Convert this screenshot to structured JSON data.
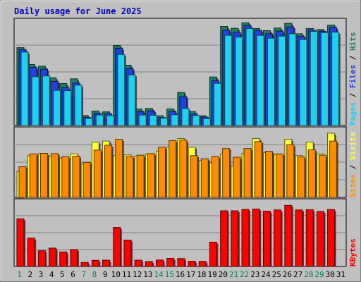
{
  "chart_data": [
    {
      "panel": "top",
      "type": "bar",
      "title": "Daily usage for June 2025",
      "y_max_label": "3928",
      "ylim": [
        0,
        3928
      ],
      "right_axis": [
        "Pages",
        "Files",
        "Hits"
      ],
      "colors": {
        "Hits": "#1f7f5f",
        "Files": "#2040e0",
        "Pages": "#20d0f0"
      },
      "categories": [
        "1",
        "2",
        "3",
        "4",
        "5",
        "6",
        "7",
        "8",
        "9",
        "10",
        "11",
        "12",
        "13",
        "14",
        "15",
        "16",
        "17",
        "18",
        "19",
        "20",
        "21",
        "22",
        "23",
        "24",
        "25",
        "26",
        "27",
        "28",
        "29",
        "30",
        "31"
      ],
      "series": [
        {
          "name": "Hits",
          "values": [
            2970,
            2330,
            2260,
            1820,
            1600,
            1780,
            380,
            550,
            520,
            3050,
            2300,
            630,
            650,
            370,
            630,
            1260,
            530,
            370,
            1850,
            3780,
            3710,
            3920,
            3700,
            3620,
            3720,
            3900,
            3500,
            3700,
            3660,
            3830,
            0
          ]
        },
        {
          "name": "Files",
          "values": [
            2900,
            2220,
            2150,
            1680,
            1450,
            1620,
            310,
            460,
            450,
            2950,
            2170,
            540,
            560,
            300,
            530,
            1100,
            440,
            320,
            1710,
            3640,
            3560,
            3820,
            3630,
            3500,
            3600,
            3760,
            3400,
            3640,
            3600,
            3740,
            0
          ]
        },
        {
          "name": "Pages",
          "values": [
            2800,
            1860,
            1890,
            1340,
            1330,
            1540,
            270,
            400,
            380,
            2710,
            1930,
            400,
            390,
            280,
            410,
            650,
            380,
            260,
            1610,
            3440,
            3370,
            3700,
            3440,
            3330,
            3410,
            3500,
            3280,
            3590,
            3540,
            3560,
            0
          ]
        }
      ]
    },
    {
      "panel": "middle",
      "type": "bar",
      "y_max_label": "259",
      "ylim": [
        0,
        259
      ],
      "right_axis": [
        "Sites",
        "Visits"
      ],
      "colors": {
        "Visits": "#ffff40",
        "Sites": "#ff8c00"
      },
      "series": [
        {
          "name": "Visits",
          "values": [
            102,
            163,
            171,
            162,
            154,
            170,
            131,
            216,
            220,
            163,
            166,
            161,
            170,
            181,
            197,
            230,
            196,
            144,
            135,
            170,
            123,
            172,
            230,
            175,
            167,
            227,
            163,
            216,
            170,
            251,
            0
          ]
        },
        {
          "name": "Sites",
          "values": [
            120,
            170,
            172,
            171,
            159,
            161,
            137,
            185,
            204,
            227,
            160,
            165,
            171,
            196,
            222,
            224,
            163,
            151,
            160,
            191,
            157,
            191,
            218,
            180,
            170,
            206,
            158,
            186,
            165,
            220,
            0
          ]
        }
      ]
    },
    {
      "panel": "bottom",
      "type": "bar",
      "y_max_label": "362475",
      "ylim": [
        0,
        362475
      ],
      "right_axis": [
        "KBytes"
      ],
      "colors": {
        "KBytes": "#ff0000"
      },
      "series": [
        {
          "name": "KBytes",
          "values": [
            272000,
            162000,
            90000,
            105000,
            83000,
            97000,
            23000,
            35000,
            36000,
            223000,
            151000,
            36000,
            28000,
            37000,
            46000,
            45000,
            30000,
            29000,
            139000,
            318000,
            318000,
            326000,
            328000,
            316000,
            323000,
            349000,
            323000,
            324000,
            314000,
            325000,
            0
          ]
        }
      ]
    }
  ],
  "x_labels": [
    "1",
    "2",
    "3",
    "4",
    "5",
    "6",
    "7",
    "8",
    "9",
    "10",
    "11",
    "12",
    "13",
    "14",
    "15",
    "16",
    "17",
    "18",
    "19",
    "20",
    "21",
    "22",
    "23",
    "24",
    "25",
    "26",
    "27",
    "28",
    "29",
    "30",
    "31"
  ],
  "weekend_days": [
    "1",
    "7",
    "8",
    "14",
    "15",
    "21",
    "22",
    "28",
    "29"
  ],
  "x_label_colors": {
    "weekday": "#000000",
    "weekend": "#00805c"
  },
  "legend_separator": " / "
}
